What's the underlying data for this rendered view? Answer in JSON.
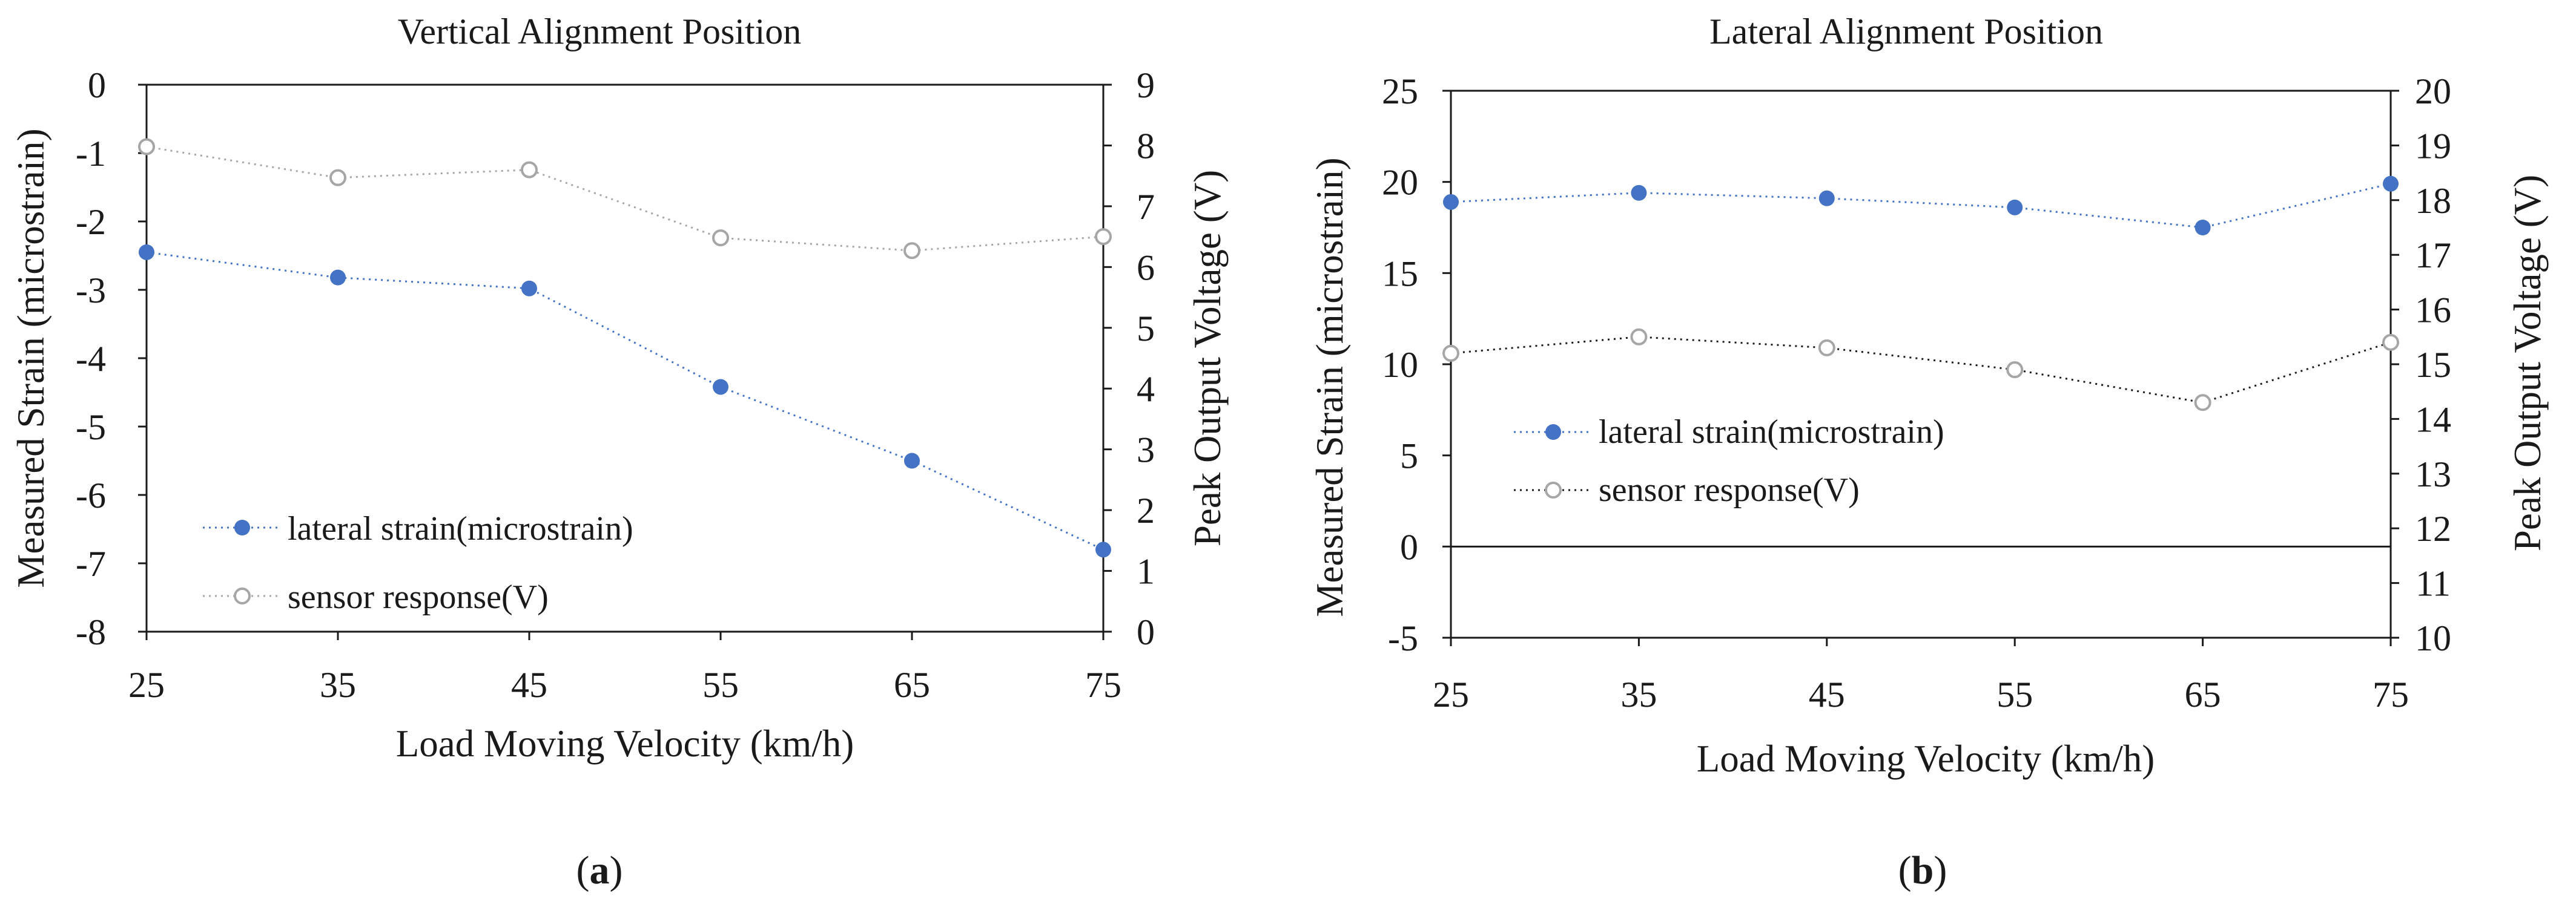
{
  "chart_data": [
    {
      "type": "line",
      "title": "Vertical Alignment Position",
      "caption": "a",
      "xlabel": "Load Moving Velocity (km/h)",
      "ylabel": "Measured Strain (microstrain)",
      "y2label": "Peak Output Voltage  (V)",
      "x": [
        25,
        35,
        45,
        55,
        65,
        75
      ],
      "x_ticks": [
        "25",
        "35",
        "45",
        "55",
        "65",
        "75"
      ],
      "xlim": [
        25,
        75
      ],
      "ylim": [
        -8,
        0
      ],
      "y_ticks": [
        "0",
        "-1",
        "-2",
        "-3",
        "-4",
        "-5",
        "-6",
        "-7",
        "-8"
      ],
      "y2lim": [
        0,
        9
      ],
      "y2_ticks": [
        "9",
        "8",
        "7",
        "6",
        "5",
        "4",
        "3",
        "2",
        "1",
        "0"
      ],
      "zero_line": false,
      "legend_position": "bottom-left",
      "series": [
        {
          "name": "lateral strain(microstrain)",
          "axis": "left",
          "values": [
            -2.45,
            -2.82,
            -2.98,
            -4.42,
            -5.5,
            -6.8
          ],
          "color": "#4472c4",
          "marker": "filled-circle",
          "line_style": "dotted"
        },
        {
          "name": "sensor response(V)",
          "axis": "right",
          "values": [
            7.98,
            7.47,
            7.6,
            6.48,
            6.27,
            6.5
          ],
          "color": "#a6a6a6",
          "marker": "open-circle",
          "line_style": "dotted"
        }
      ]
    },
    {
      "type": "line",
      "title": "Lateral Alignment Position",
      "caption": "b",
      "xlabel": "Load Moving Velocity (km/h)",
      "ylabel": "Measured Strain (microstrain)",
      "y2label": "Peak Output Voltage  (V)",
      "x": [
        25,
        35,
        45,
        55,
        65,
        75
      ],
      "x_ticks": [
        "25",
        "35",
        "45",
        "55",
        "65",
        "75"
      ],
      "xlim": [
        25,
        75
      ],
      "ylim": [
        -5,
        25
      ],
      "y_ticks": [
        "25",
        "20",
        "15",
        "10",
        "5",
        "0",
        "-5"
      ],
      "y2lim": [
        10,
        20
      ],
      "y2_ticks": [
        "20",
        "19",
        "18",
        "17",
        "16",
        "15",
        "14",
        "13",
        "12",
        "11",
        "10"
      ],
      "zero_line": true,
      "legend_position": "center-left",
      "series": [
        {
          "name": "lateral strain(microstrain)",
          "axis": "left",
          "values": [
            18.9,
            19.4,
            19.1,
            18.6,
            17.5,
            19.9
          ],
          "color": "#4472c4",
          "marker": "filled-circle",
          "line_style": "dotted"
        },
        {
          "name": "sensor response(V)",
          "axis": "right",
          "values": [
            15.2,
            15.5,
            15.3,
            14.9,
            14.3,
            15.4
          ],
          "color": "#1a1a1a",
          "marker": "open-circle",
          "line_style": "dotted"
        }
      ]
    }
  ]
}
